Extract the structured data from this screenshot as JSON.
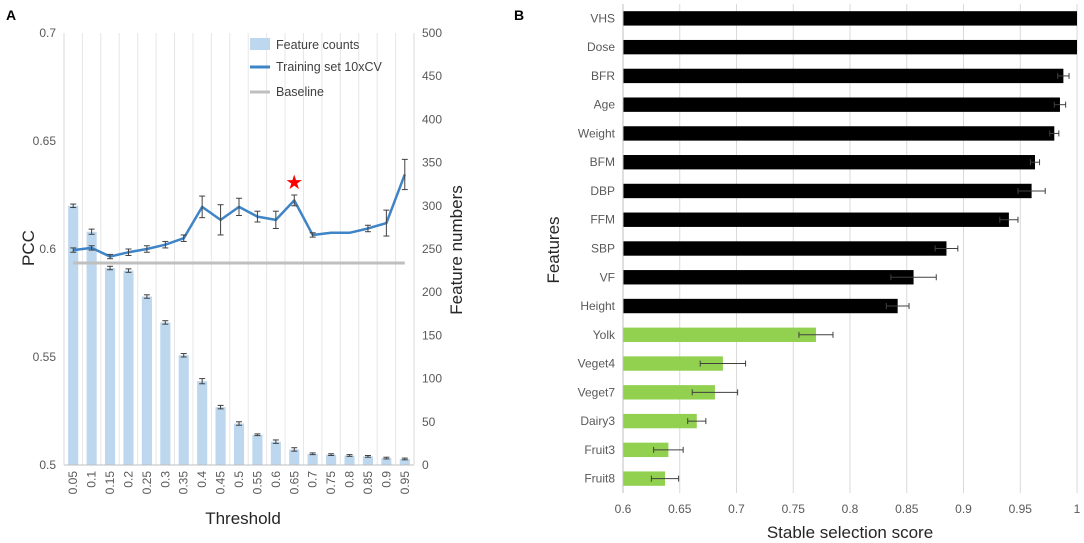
{
  "chart_data": [
    {
      "panel_label": "A",
      "type": "bar+line",
      "xlabel": "Threshold",
      "ylabel": "PCC",
      "y2label": "Feature numbers",
      "categories": [
        "0.05",
        "0.1",
        "0.15",
        "0.2",
        "0.25",
        "0.3",
        "0.35",
        "0.4",
        "0.45",
        "0.5",
        "0.55",
        "0.6",
        "0.65",
        "0.7",
        "0.75",
        "0.8",
        "0.85",
        "0.9",
        "0.95"
      ],
      "ylim": [
        0.5,
        0.7
      ],
      "yticks": [
        "0.5",
        "0.55",
        "0.6",
        "0.65",
        "0.7"
      ],
      "y2lim": [
        0,
        500
      ],
      "y2ticks": [
        "0",
        "50",
        "100",
        "150",
        "200",
        "250",
        "300",
        "350",
        "400",
        "450",
        "500"
      ],
      "series": [
        {
          "name": "Feature counts",
          "kind": "bar",
          "axis": "right",
          "color": "#bdd7ee",
          "values": [
            300,
            270,
            228,
            225,
            195,
            165,
            127,
            97,
            67,
            48,
            35,
            27,
            18,
            13,
            12,
            11,
            10,
            8,
            7
          ],
          "errors": [
            2,
            3,
            2,
            2,
            2,
            2,
            2,
            3,
            2,
            2,
            1,
            2,
            2,
            1,
            1,
            1,
            1,
            1,
            1
          ]
        },
        {
          "name": "Training set 10xCV",
          "kind": "line",
          "axis": "left",
          "color": "#3e84c6",
          "values": [
            0.5995,
            0.6005,
            0.5965,
            0.5985,
            0.6,
            0.602,
            0.605,
            0.6195,
            0.6135,
            0.6195,
            0.615,
            0.6135,
            0.6225,
            0.6065,
            0.6075,
            0.6075,
            0.6095,
            0.612,
            0.6345
          ],
          "errors": [
            0.001,
            0.001,
            0.001,
            0.0015,
            0.0015,
            0.0015,
            0.0015,
            0.005,
            0.007,
            0.004,
            0.0025,
            0.004,
            0.0025,
            0.001,
            0,
            0,
            0.0015,
            0.006,
            0.007
          ]
        },
        {
          "name": "Baseline",
          "kind": "line",
          "axis": "left",
          "color": "#bfbfbf",
          "value": 0.5935
        }
      ],
      "annotation": {
        "symbol": "★",
        "category": "0.65",
        "value": 0.631,
        "color": "#ff0000"
      }
    },
    {
      "panel_label": "B",
      "type": "hbar",
      "xlabel": "Stable selection score",
      "ylabel": "Features",
      "xlim": [
        0.6,
        1.0
      ],
      "xticks": [
        "0.6",
        "0.65",
        "0.7",
        "0.75",
        "0.8",
        "0.85",
        "0.9",
        "0.95",
        "1"
      ],
      "categories": [
        "VHS",
        "Dose",
        "BFR",
        "Age",
        "Weight",
        "BFM",
        "DBP",
        "FFM",
        "SBP",
        "VF",
        "Height",
        "Yolk",
        "Veget4",
        "Veget7",
        "Dairy3",
        "Fruit3",
        "Fruit8"
      ],
      "values": [
        1.0,
        1.0,
        0.988,
        0.985,
        0.98,
        0.963,
        0.96,
        0.94,
        0.885,
        0.856,
        0.842,
        0.77,
        0.688,
        0.681,
        0.665,
        0.64,
        0.637
      ],
      "errors": [
        0,
        0,
        0.005,
        0.005,
        0.004,
        0.004,
        0.012,
        0.008,
        0.01,
        0.02,
        0.01,
        0.015,
        0.02,
        0.02,
        0.008,
        0.013,
        0.012
      ],
      "colors": [
        "#000000",
        "#000000",
        "#000000",
        "#000000",
        "#000000",
        "#000000",
        "#000000",
        "#000000",
        "#000000",
        "#000000",
        "#000000",
        "#92d050",
        "#92d050",
        "#92d050",
        "#92d050",
        "#92d050",
        "#92d050"
      ]
    }
  ]
}
